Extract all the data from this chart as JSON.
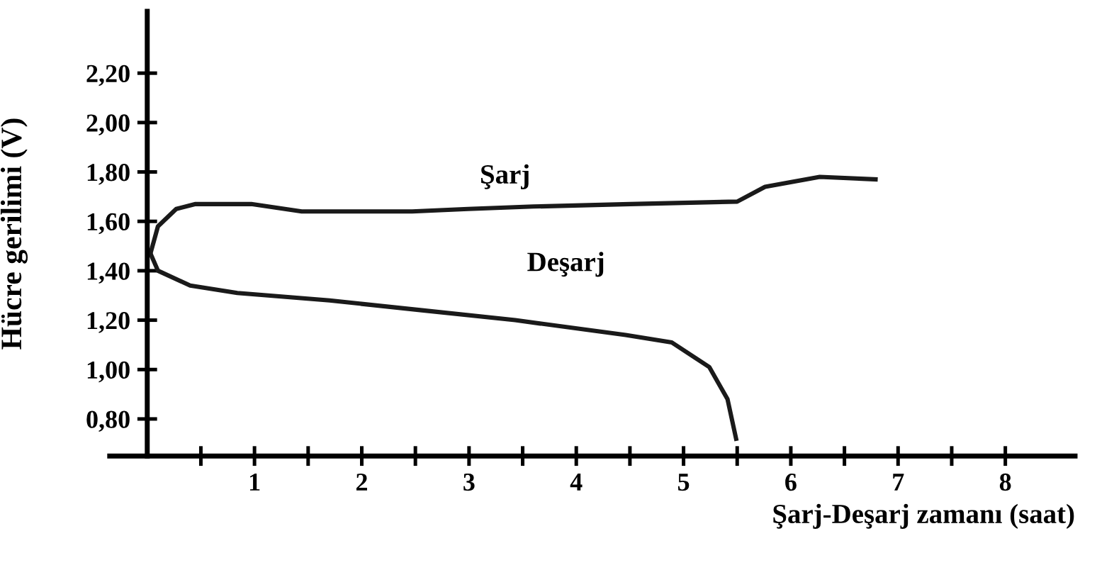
{
  "chart_data": {
    "type": "line",
    "xlabel": "Şarj-Deşarj zamanı (saat)",
    "ylabel": "Hücre gerilimi (V)",
    "xlim": [
      -0.35,
      8.65
    ],
    "ylim": [
      0.65,
      2.45
    ],
    "xticks": [
      {
        "value": 0.5,
        "label": null
      },
      1,
      {
        "value": 1.5,
        "label": null
      },
      2,
      {
        "value": 2.5,
        "label": null
      },
      3,
      {
        "value": 3.5,
        "label": null
      },
      4,
      {
        "value": 4.5,
        "label": null
      },
      5,
      {
        "value": 5.5,
        "label": null
      },
      6,
      {
        "value": 6.5,
        "label": null
      },
      7,
      {
        "value": 7.5,
        "label": null
      },
      8
    ],
    "yticks": [
      {
        "value": 0.8,
        "label": "0,80"
      },
      {
        "value": 1.0,
        "label": "1,00"
      },
      {
        "value": 1.2,
        "label": "1,20"
      },
      {
        "value": 1.4,
        "label": "1,40"
      },
      {
        "value": 1.6,
        "label": "1,60"
      },
      {
        "value": 1.8,
        "label": "1,80"
      },
      {
        "value": 2.0,
        "label": "2,00"
      },
      {
        "value": 2.2,
        "label": "2,20"
      }
    ],
    "grid": false,
    "legend": false,
    "marker": "none",
    "line_style": "solid",
    "series": [
      {
        "name": "Şarj",
        "color": "#1a1a1a",
        "x": [
          0.03,
          0.1,
          0.27,
          0.45,
          0.97,
          1.44,
          2.47,
          2.99,
          3.6,
          4.5,
          5.5,
          5.76,
          6.27,
          6.79
        ],
        "values": [
          1.47,
          1.58,
          1.65,
          1.67,
          1.67,
          1.64,
          1.64,
          1.65,
          1.66,
          1.67,
          1.68,
          1.74,
          1.78,
          1.77
        ]
      },
      {
        "name": "Deşarj",
        "color": "#1a1a1a",
        "x": [
          0.03,
          0.1,
          0.4,
          0.84,
          1.7,
          2.56,
          3.43,
          4.46,
          4.89,
          5.24,
          5.41,
          5.49
        ],
        "values": [
          1.47,
          1.4,
          1.34,
          1.31,
          1.28,
          1.24,
          1.2,
          1.14,
          1.11,
          1.01,
          0.88,
          0.72
        ]
      }
    ]
  }
}
